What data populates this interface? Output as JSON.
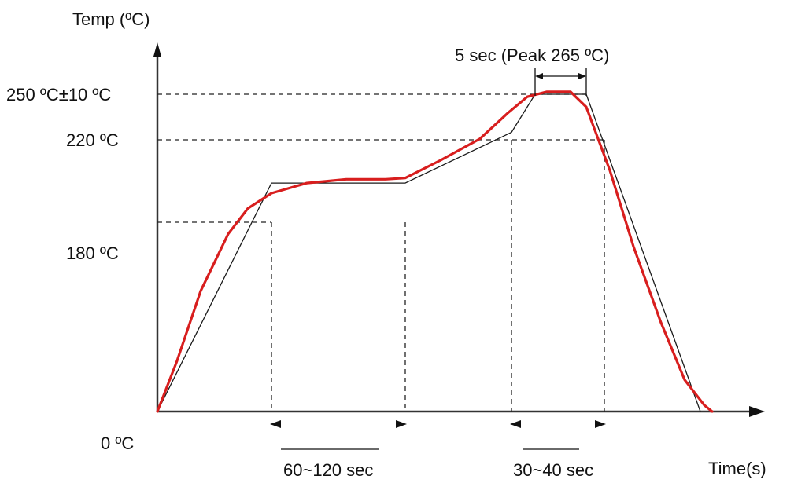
{
  "chart_data": {
    "type": "line",
    "title": "",
    "ylabel": "Temp (ºC)",
    "xlabel": "Time(s)",
    "y_tick_labels": [
      "0 ºC",
      "180 ºC",
      "220 ºC",
      "250 ºC±10 ºC"
    ],
    "annotations": {
      "peak": "5 sec (Peak 265 ºC)",
      "soak": "60~120 sec",
      "reflow": "30~40 sec"
    },
    "colors": {
      "profile": "#d81e1e",
      "ideal": "#1a1a1a"
    },
    "ideal_profile": {
      "x": [
        0,
        145,
        315,
        450,
        480,
        545,
        690
      ],
      "y": [
        0,
        180,
        180,
        220,
        250,
        250,
        0
      ]
    },
    "measured_profile": {
      "x": [
        0,
        25,
        55,
        90,
        115,
        145,
        190,
        240,
        290,
        315,
        360,
        410,
        445,
        470,
        495,
        525,
        545,
        575,
        605,
        640,
        670,
        695,
        705
      ],
      "y": [
        0,
        40,
        95,
        140,
        160,
        172,
        180,
        183,
        183,
        184,
        198,
        215,
        235,
        248,
        252,
        252,
        240,
        190,
        130,
        70,
        25,
        5,
        0
      ]
    },
    "grid": false,
    "legend": "none"
  }
}
